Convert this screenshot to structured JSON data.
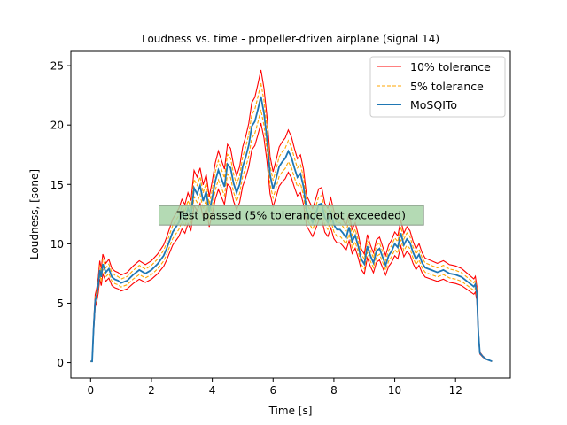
{
  "chart_data": {
    "type": "line",
    "title": "Loudness vs. time - propeller-driven airplane (signal 14)",
    "xlabel": "Time [s]",
    "ylabel": "Loudness, [sone]",
    "xlim": [
      -0.65,
      13.8
    ],
    "ylim": [
      -1.3,
      26.2
    ],
    "xticks": [
      0,
      2,
      4,
      6,
      8,
      10,
      12
    ],
    "yticks": [
      0,
      5,
      10,
      15,
      20,
      25
    ],
    "grid": false,
    "legend_position": "top-right",
    "annotation": "Test passed (5% tolerance not exceeded)",
    "annotation_box": {
      "x_start": 2.25,
      "x_end": 10.95,
      "y_center": 12.4
    },
    "x": [
      0,
      0.05,
      0.1,
      0.15,
      0.2,
      0.25,
      0.3,
      0.35,
      0.4,
      0.5,
      0.6,
      0.7,
      0.8,
      0.9,
      1.0,
      1.2,
      1.4,
      1.6,
      1.8,
      2.0,
      2.2,
      2.4,
      2.5,
      2.7,
      2.9,
      3.0,
      3.1,
      3.2,
      3.3,
      3.4,
      3.5,
      3.6,
      3.7,
      3.8,
      3.9,
      4.0,
      4.1,
      4.2,
      4.3,
      4.4,
      4.5,
      4.6,
      4.7,
      4.8,
      4.9,
      5.0,
      5.1,
      5.2,
      5.3,
      5.4,
      5.5,
      5.6,
      5.7,
      5.8,
      5.9,
      6.0,
      6.1,
      6.2,
      6.3,
      6.4,
      6.5,
      6.6,
      6.7,
      6.8,
      6.9,
      7.0,
      7.1,
      7.2,
      7.3,
      7.4,
      7.5,
      7.6,
      7.7,
      7.8,
      7.9,
      8.0,
      8.1,
      8.2,
      8.3,
      8.4,
      8.5,
      8.6,
      8.7,
      8.8,
      8.9,
      9.0,
      9.1,
      9.2,
      9.3,
      9.4,
      9.5,
      9.6,
      9.7,
      9.8,
      9.9,
      10.0,
      10.1,
      10.2,
      10.3,
      10.4,
      10.5,
      10.6,
      10.7,
      10.8,
      10.9,
      11.0,
      11.2,
      11.4,
      11.6,
      11.8,
      12.0,
      12.2,
      12.4,
      12.6,
      12.65,
      12.7,
      12.75,
      12.8,
      12.9,
      13.0,
      13.1,
      13.2
    ],
    "series": [
      {
        "name": "MoSQITo",
        "color": "#1f77b4",
        "values": [
          0.1,
          0.1,
          3.0,
          5.2,
          5.7,
          6.5,
          7.8,
          7.2,
          8.3,
          7.6,
          7.9,
          7.2,
          7.0,
          6.9,
          6.7,
          6.9,
          7.4,
          7.8,
          7.5,
          7.8,
          8.3,
          9.0,
          9.6,
          11.0,
          11.8,
          12.5,
          12.1,
          13.0,
          12.4,
          14.7,
          14.2,
          14.9,
          13.6,
          14.4,
          12.7,
          13.9,
          15.3,
          16.2,
          15.5,
          14.8,
          16.7,
          16.4,
          15.1,
          14.3,
          15.0,
          16.5,
          17.3,
          18.3,
          19.9,
          20.3,
          21.3,
          22.4,
          21.0,
          18.8,
          15.8,
          14.6,
          15.5,
          16.5,
          16.9,
          17.2,
          17.8,
          17.3,
          16.4,
          15.6,
          15.9,
          14.8,
          12.8,
          12.3,
          11.8,
          12.5,
          13.3,
          13.4,
          12.2,
          11.8,
          12.6,
          11.6,
          11.2,
          11.2,
          10.9,
          10.5,
          11.4,
          10.2,
          10.7,
          9.8,
          8.7,
          8.3,
          9.8,
          9.0,
          8.4,
          9.4,
          9.6,
          8.9,
          8.2,
          9.0,
          9.4,
          10.0,
          9.7,
          10.9,
          9.9,
          10.4,
          10.1,
          9.3,
          8.7,
          9.1,
          8.4,
          8.0,
          7.8,
          7.6,
          7.8,
          7.5,
          7.4,
          7.2,
          6.8,
          6.4,
          6.6,
          5.8,
          2.5,
          0.8,
          0.5,
          0.3,
          0.2,
          0.1
        ]
      }
    ]
  },
  "legend": {
    "tol10_label": "10% tolerance",
    "tol5_label": "5% tolerance",
    "mosqito_label": "MoSQITo",
    "tol10_color": "#ff0000",
    "tol5_color": "#ffa500",
    "mosqito_color": "#1f77b4"
  },
  "colors": {
    "annotation_fill": "#a7d3a7",
    "annotation_border": "#8a9a8a"
  }
}
